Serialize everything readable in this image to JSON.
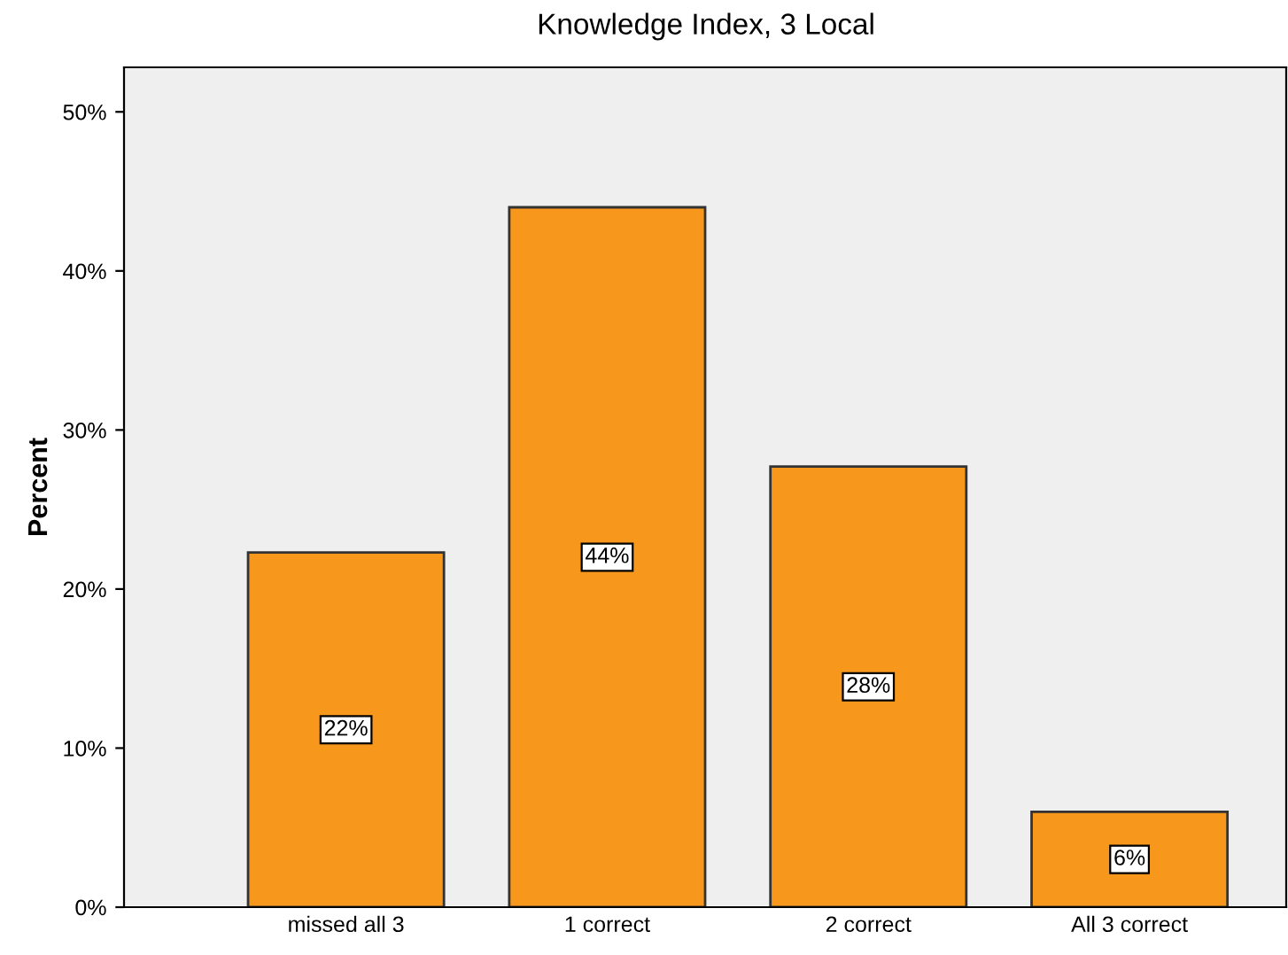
{
  "chart_data": {
    "type": "bar",
    "title": "Knowledge Index, 3 Local",
    "ylabel": "Percent",
    "categories": [
      "missed all 3",
      "1 correct",
      "2 correct",
      "All 3 correct"
    ],
    "values": [
      22.3,
      44.0,
      27.7,
      6.0
    ],
    "value_labels": [
      "22%",
      "44%",
      "28%",
      "6%"
    ],
    "color": "#f7981d",
    "ylim": [
      0,
      52.8
    ],
    "yticks": [
      {
        "value": 0,
        "label": "0%"
      },
      {
        "value": 10,
        "label": "10%"
      },
      {
        "value": 20,
        "label": "20%"
      },
      {
        "value": 30,
        "label": "30%"
      },
      {
        "value": 40,
        "label": "40%"
      },
      {
        "value": 50,
        "label": "50%"
      }
    ],
    "grid": false,
    "legend": false
  }
}
